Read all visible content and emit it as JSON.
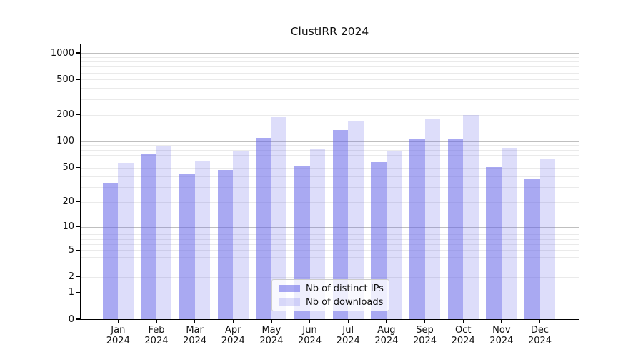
{
  "chart_data": {
    "type": "bar",
    "title": "ClustIRR 2024",
    "xlabel": "",
    "ylabel": "",
    "yscale": "symlog (log10 of 1+value)",
    "ylim": [
      0,
      1250
    ],
    "grid": true,
    "legend_position": "lower center",
    "year": "2024",
    "categories": [
      "Jan",
      "Feb",
      "Mar",
      "Apr",
      "May",
      "Jun",
      "Jul",
      "Aug",
      "Sep",
      "Oct",
      "Nov",
      "Dec"
    ],
    "series": [
      {
        "name": "Nb of distinct IPs",
        "color": "#6262e8",
        "alpha": 0.55,
        "apparent_color": "#a9a9f2",
        "values": [
          33,
          73,
          43,
          47,
          110,
          52,
          135,
          58,
          105,
          108,
          51,
          37
        ]
      },
      {
        "name": "Nb of downloads",
        "color": "#6262e8",
        "alpha": 0.22,
        "apparent_color": "#dcdcfa",
        "values": [
          57,
          89,
          59,
          77,
          188,
          83,
          170,
          76,
          177,
          200,
          84,
          64
        ]
      }
    ],
    "yticks": [
      0,
      1,
      2,
      5,
      10,
      20,
      50,
      100,
      200,
      500,
      1000
    ]
  },
  "colors": {
    "background": "#ffffff",
    "axis_frame": "#000000",
    "major_grid": "#bfbfbf",
    "minor_grid": "#eaeaea",
    "text": "#111111",
    "legend_border": "#cccccc"
  }
}
